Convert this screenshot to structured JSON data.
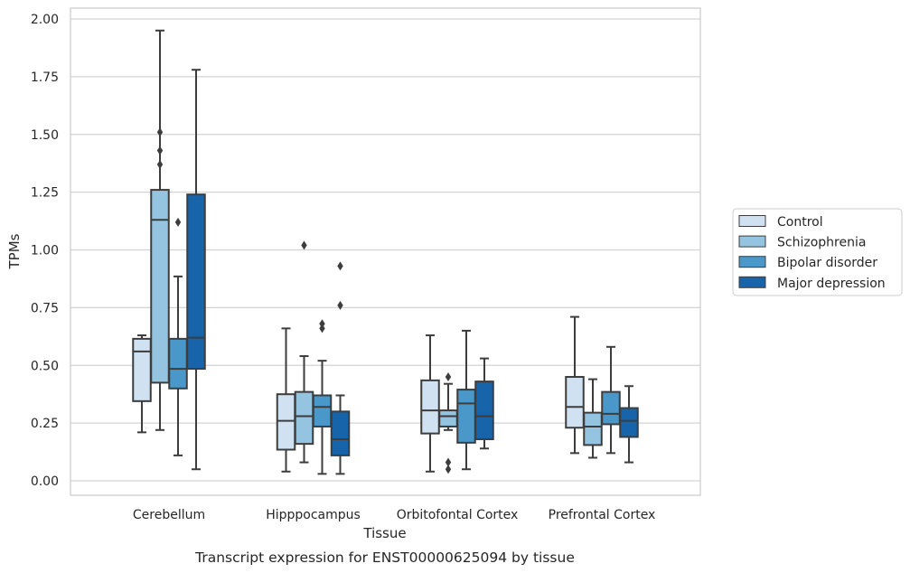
{
  "chart_data": {
    "type": "box",
    "caption": "Transcript expression for ENST00000625094 by tissue",
    "xlabel": "Tissue",
    "ylabel": "TPMs",
    "ylim": [
      -0.06,
      2.06
    ],
    "yticks": [
      0.0,
      0.25,
      0.5,
      0.75,
      1.0,
      1.25,
      1.5,
      1.75,
      2.0
    ],
    "ytick_labels": [
      "0.00",
      "0.25",
      "0.50",
      "0.75",
      "1.00",
      "1.25",
      "1.50",
      "1.75",
      "2.00"
    ],
    "categories": [
      "Cerebellum",
      "Hipppocampus",
      "Orbitofontal Cortex",
      "Prefrontal Cortex"
    ],
    "grid": true,
    "legend_position": "right",
    "series": [
      {
        "name": "Control",
        "color": "#d0e1f2",
        "boxes": [
          {
            "whislo": 0.21,
            "q1": 0.345,
            "med": 0.56,
            "q3": 0.615,
            "whishi": 0.63,
            "fliers": []
          },
          {
            "whislo": 0.04,
            "q1": 0.135,
            "med": 0.26,
            "q3": 0.375,
            "whishi": 0.66,
            "fliers": []
          },
          {
            "whislo": 0.04,
            "q1": 0.205,
            "med": 0.305,
            "q3": 0.435,
            "whishi": 0.63,
            "fliers": []
          },
          {
            "whislo": 0.12,
            "q1": 0.23,
            "med": 0.32,
            "q3": 0.45,
            "whishi": 0.71,
            "fliers": []
          }
        ]
      },
      {
        "name": "Schizophrenia",
        "color": "#94c4df",
        "boxes": [
          {
            "whislo": 0.22,
            "q1": 0.425,
            "med": 1.13,
            "q3": 1.26,
            "whishi": 1.95,
            "fliers": [
              1.51,
              1.43,
              1.37
            ]
          },
          {
            "whislo": 0.08,
            "q1": 0.16,
            "med": 0.28,
            "q3": 0.385,
            "whishi": 0.54,
            "fliers": [
              1.02
            ]
          },
          {
            "whislo": 0.22,
            "q1": 0.235,
            "med": 0.28,
            "q3": 0.305,
            "whishi": 0.42,
            "fliers": [
              0.45,
              0.08,
              0.05
            ]
          },
          {
            "whislo": 0.1,
            "q1": 0.155,
            "med": 0.235,
            "q3": 0.295,
            "whishi": 0.44,
            "fliers": []
          }
        ]
      },
      {
        "name": "Bipolar disorder",
        "color": "#4a98c9",
        "boxes": [
          {
            "whislo": 0.11,
            "q1": 0.4,
            "med": 0.485,
            "q3": 0.615,
            "whishi": 0.885,
            "fliers": [
              1.12
            ]
          },
          {
            "whislo": 0.03,
            "q1": 0.235,
            "med": 0.32,
            "q3": 0.37,
            "whishi": 0.52,
            "fliers": [
              0.68,
              0.66
            ]
          },
          {
            "whislo": 0.05,
            "q1": 0.165,
            "med": 0.335,
            "q3": 0.395,
            "whishi": 0.65,
            "fliers": []
          },
          {
            "whislo": 0.12,
            "q1": 0.245,
            "med": 0.29,
            "q3": 0.385,
            "whishi": 0.58,
            "fliers": []
          }
        ]
      },
      {
        "name": "Major depression",
        "color": "#1764ab",
        "boxes": [
          {
            "whislo": 0.05,
            "q1": 0.485,
            "med": 0.62,
            "q3": 1.24,
            "whishi": 1.78,
            "fliers": []
          },
          {
            "whislo": 0.03,
            "q1": 0.11,
            "med": 0.18,
            "q3": 0.3,
            "whishi": 0.37,
            "fliers": [
              0.93,
              0.76
            ]
          },
          {
            "whislo": 0.14,
            "q1": 0.18,
            "med": 0.28,
            "q3": 0.43,
            "whishi": 0.53,
            "fliers": []
          },
          {
            "whislo": 0.08,
            "q1": 0.19,
            "med": 0.26,
            "q3": 0.315,
            "whishi": 0.41,
            "fliers": []
          }
        ]
      }
    ]
  }
}
